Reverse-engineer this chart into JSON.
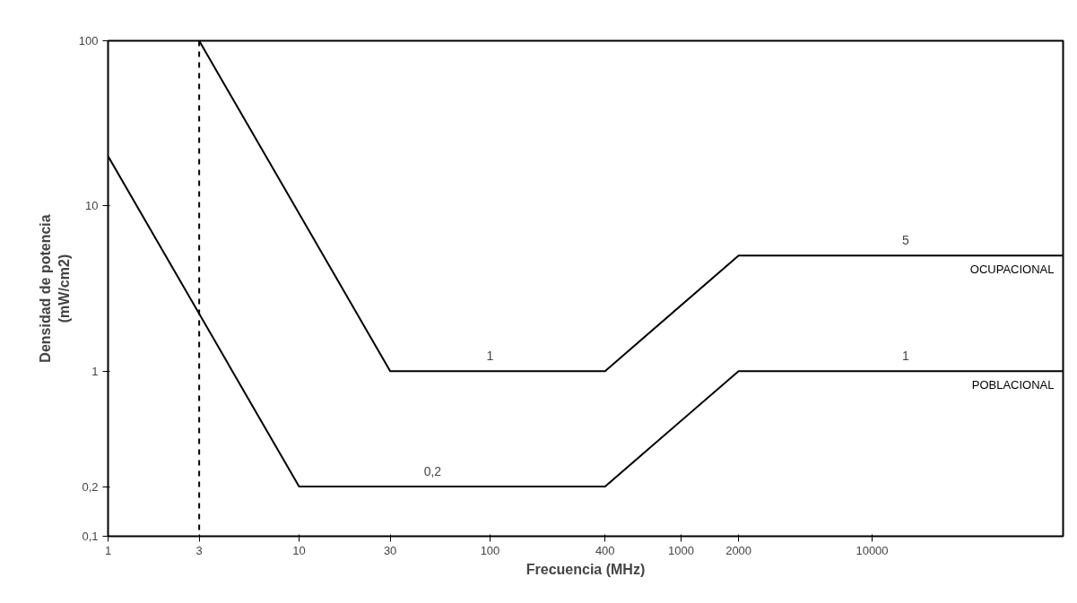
{
  "chart_data": {
    "type": "line",
    "xlabel": "Frecuencia (MHz)",
    "ylabel": "Densidad de potencia\n(mW/cm2)",
    "log": "xy",
    "xlim": [
      1,
      100000
    ],
    "ylim": [
      0.1,
      100
    ],
    "xticks": [
      1,
      3,
      10,
      30,
      100,
      400,
      1000,
      2000,
      10000
    ],
    "yticks": [
      {
        "value": 0.1,
        "label": "0,1"
      },
      {
        "value": 0.2,
        "label": "0,2"
      },
      1,
      10,
      100
    ],
    "grid": false,
    "series": [
      {
        "name": "OCUPACIONAL",
        "color": "#000000",
        "x": [
          3,
          30,
          400,
          2000,
          100000
        ],
        "values": [
          100,
          1,
          1,
          5,
          5
        ]
      },
      {
        "name": "POBLACIONAL",
        "color": "#000000",
        "x": [
          1,
          10,
          400,
          2000,
          100000
        ],
        "values": [
          20,
          0.2,
          0.2,
          1,
          1
        ]
      }
    ],
    "ref_lines": [
      {
        "axis": "x",
        "value": 3,
        "color": "#000000",
        "line_style": "dashed"
      }
    ],
    "annotations": [
      {
        "text": "5",
        "x": 15000,
        "y": 5
      },
      {
        "text": "1",
        "x": 100,
        "y": 1
      },
      {
        "text": "1",
        "x": 15000,
        "y": 1
      },
      {
        "text": "0,2",
        "x": 50,
        "y": 0.2
      }
    ]
  }
}
